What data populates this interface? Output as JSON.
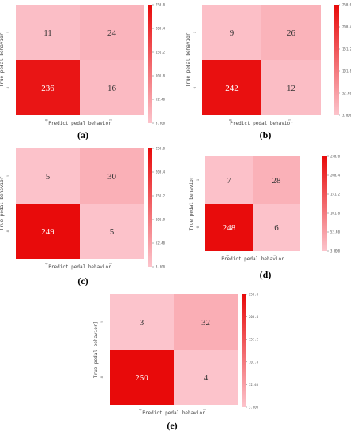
{
  "chart_data": [
    {
      "type": "heatmap",
      "panel_label": "(a)",
      "xlabel": "Predict pedal behavior",
      "ylabel": "True pedal behavior",
      "x_ticks": [
        "0",
        "1"
      ],
      "y_ticks": [
        "1",
        "0"
      ],
      "matrix": [
        [
          11,
          24
        ],
        [
          236,
          16
        ]
      ],
      "colorbar_ticks": [
        "250.0",
        "200.4",
        "151.2",
        "101.8",
        "52.40",
        "3.000"
      ],
      "vmin": 3,
      "vmax": 250
    },
    {
      "type": "heatmap",
      "panel_label": "(b)",
      "xlabel": "Predict pedal behavior",
      "ylabel": "True pedal behavior",
      "x_ticks": [
        "0",
        "1"
      ],
      "y_ticks": [
        "1",
        "0"
      ],
      "matrix": [
        [
          9,
          26
        ],
        [
          242,
          12
        ]
      ],
      "colorbar_ticks": [
        "250.0",
        "200.4",
        "151.2",
        "101.8",
        "52.40",
        "3.000"
      ],
      "vmin": 3,
      "vmax": 250
    },
    {
      "type": "heatmap",
      "panel_label": "(c)",
      "xlabel": "Predict pedal behavior",
      "ylabel": "True pedal behavior",
      "x_ticks": [
        "0",
        "1"
      ],
      "y_ticks": [
        "1",
        "0"
      ],
      "matrix": [
        [
          5,
          30
        ],
        [
          249,
          5
        ]
      ],
      "colorbar_ticks": [
        "250.0",
        "200.4",
        "151.2",
        "101.8",
        "52.40",
        "3.000"
      ],
      "vmin": 3,
      "vmax": 250
    },
    {
      "type": "heatmap",
      "panel_label": "(d)",
      "xlabel": "Predict pedal behavior",
      "ylabel": "True pedal behavior",
      "x_ticks": [
        "0",
        "1"
      ],
      "y_ticks": [
        "1",
        "0"
      ],
      "matrix": [
        [
          7,
          28
        ],
        [
          248,
          6
        ]
      ],
      "colorbar_ticks": [
        "250.0",
        "200.4",
        "151.2",
        "101.8",
        "52.40",
        "3.000"
      ],
      "vmin": 3,
      "vmax": 250
    },
    {
      "type": "heatmap",
      "panel_label": "(e)",
      "xlabel": "Predict pedal behavior",
      "ylabel": "True pedal behavior]",
      "x_ticks": [
        "0",
        "1"
      ],
      "y_ticks": [
        "1",
        "0"
      ],
      "matrix": [
        [
          3,
          32
        ],
        [
          250,
          4
        ]
      ],
      "colorbar_ticks": [
        "250.0",
        "200.4",
        "151.2",
        "101.8",
        "52.40",
        "3.000"
      ],
      "vmin": 3,
      "vmax": 250
    }
  ],
  "colors": {
    "low": "#fcc4cc",
    "high": "#e80a0a"
  }
}
